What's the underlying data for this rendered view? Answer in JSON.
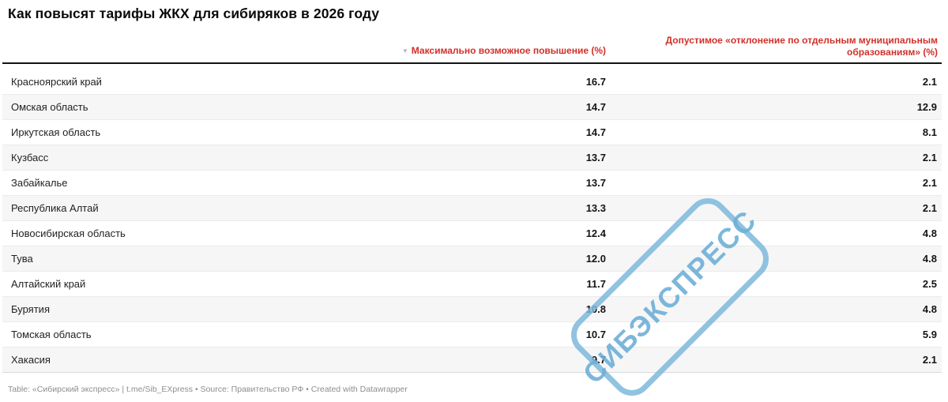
{
  "title": "Как повысят тарифы ЖКХ для сибиряков в 2026 году",
  "header": {
    "sort_indicator": "▼",
    "col_max_increase": "Максимально возможное повышение (%)",
    "col_deviation": "Допустимое «отклонение по отдельным муниципальным образованиям» (%)"
  },
  "chart_data": {
    "type": "table",
    "title": "Как повысят тарифы ЖКХ для сибиряков в 2026 году",
    "columns": [
      "",
      "Максимально возможное повышение (%)",
      "Допустимое «отклонение по отдельным муниципальным образованиям» (%)"
    ],
    "sorted_by": "Максимально возможное повышение (%)",
    "sort_order": "desc",
    "rows": [
      {
        "region": "Красноярский край",
        "max_increase": "16.7",
        "deviation": "2.1"
      },
      {
        "region": "Омская область",
        "max_increase": "14.7",
        "deviation": "12.9"
      },
      {
        "region": "Иркутская область",
        "max_increase": "14.7",
        "deviation": "8.1"
      },
      {
        "region": "Кузбасс",
        "max_increase": "13.7",
        "deviation": "2.1"
      },
      {
        "region": "Забайкалье",
        "max_increase": "13.7",
        "deviation": "2.1"
      },
      {
        "region": "Республика Алтай",
        "max_increase": "13.3",
        "deviation": "2.1"
      },
      {
        "region": "Новосибирская область",
        "max_increase": "12.4",
        "deviation": "4.8"
      },
      {
        "region": "Тува",
        "max_increase": "12.0",
        "deviation": "4.8"
      },
      {
        "region": "Алтайский край",
        "max_increase": "11.7",
        "deviation": "2.5"
      },
      {
        "region": "Бурятия",
        "max_increase": "10.8",
        "deviation": "4.8"
      },
      {
        "region": "Томская область",
        "max_increase": "10.7",
        "deviation": "5.9"
      },
      {
        "region": "Хакасия",
        "max_increase": "9.7",
        "deviation": "2.1"
      }
    ]
  },
  "footer": "Table: «Сибирский экспресс» | t.me/Sib_EXpress • Source: Правительство РФ • Created with Datawrapper",
  "watermark": "СИБЭКСПРЕСС",
  "colors": {
    "header_red": "#d0302a",
    "sort_arrow_gray": "#b5b5b5",
    "row_alt_bg": "#f6f6f6",
    "watermark_blue": "#7db8dc",
    "footer_gray": "#8e8e8e"
  }
}
